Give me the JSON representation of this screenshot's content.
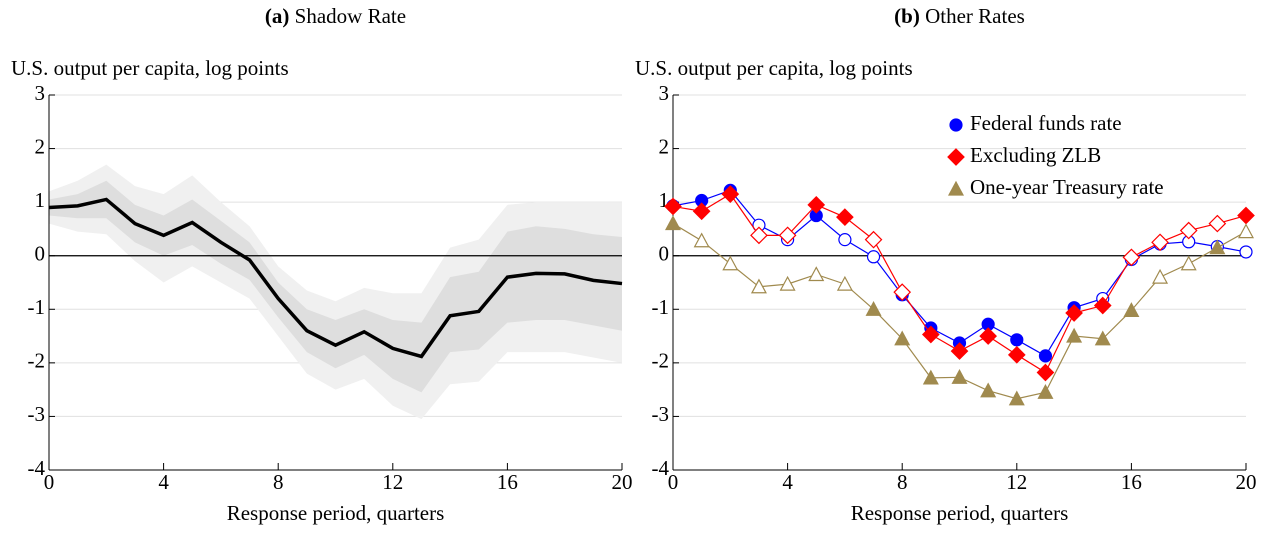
{
  "chart_data": [
    {
      "type": "band-line",
      "panel_label": "(a)",
      "title": "Shadow Rate",
      "y_label": "U.S. output per capita, log points",
      "x_label": "Response period, quarters",
      "x": [
        0,
        1,
        2,
        3,
        4,
        5,
        6,
        7,
        8,
        9,
        10,
        11,
        12,
        13,
        14,
        15,
        16,
        17,
        18,
        19,
        20
      ],
      "xlim": [
        0,
        20
      ],
      "xticks": [
        0,
        4,
        8,
        12,
        16,
        20
      ],
      "ylim": [
        -4,
        3
      ],
      "yticks": [
        3,
        2,
        1,
        0,
        -1,
        -2,
        -3,
        -4
      ],
      "hline": 0,
      "grid": true,
      "bands": [
        {
          "color": "#f0f0f0",
          "upper": [
            1.2,
            1.4,
            1.7,
            1.3,
            1.15,
            1.5,
            1.0,
            0.55,
            -0.2,
            -0.65,
            -0.85,
            -0.6,
            -0.7,
            -0.7,
            0.15,
            0.3,
            0.95,
            1.0,
            1.0,
            1.0,
            1.0
          ],
          "lower": [
            0.6,
            0.45,
            0.4,
            -0.1,
            -0.5,
            -0.2,
            -0.5,
            -0.8,
            -1.5,
            -2.2,
            -2.5,
            -2.3,
            -2.8,
            -3.05,
            -2.4,
            -2.35,
            -1.8,
            -1.8,
            -1.8,
            -1.9,
            -2.0
          ]
        },
        {
          "color": "#dedede",
          "upper": [
            1.05,
            1.15,
            1.4,
            0.95,
            0.75,
            1.05,
            0.65,
            0.25,
            -0.5,
            -1.0,
            -1.2,
            -1.0,
            -1.2,
            -1.25,
            -0.4,
            -0.3,
            0.45,
            0.55,
            0.5,
            0.4,
            0.35
          ],
          "lower": [
            0.75,
            0.7,
            0.7,
            0.25,
            0.0,
            0.2,
            -0.15,
            -0.45,
            -1.15,
            -1.8,
            -2.1,
            -1.85,
            -2.3,
            -2.55,
            -1.8,
            -1.75,
            -1.25,
            -1.2,
            -1.2,
            -1.3,
            -1.4
          ]
        }
      ],
      "series": [
        {
          "color": "#000000",
          "values": [
            0.9,
            0.93,
            1.05,
            0.6,
            0.38,
            0.62,
            0.25,
            -0.08,
            -0.8,
            -1.4,
            -1.67,
            -1.42,
            -1.73,
            -1.88,
            -1.12,
            -1.04,
            -0.4,
            -0.33,
            -0.34,
            -0.46,
            -0.52
          ]
        }
      ]
    },
    {
      "type": "marker-line",
      "panel_label": "(b)",
      "title": "Other Rates",
      "y_label": "U.S. output per capita, log points",
      "x_label": "Response period, quarters",
      "x": [
        0,
        1,
        2,
        3,
        4,
        5,
        6,
        7,
        8,
        9,
        10,
        11,
        12,
        13,
        14,
        15,
        16,
        17,
        18,
        19,
        20
      ],
      "xlim": [
        0,
        20
      ],
      "xticks": [
        0,
        4,
        8,
        12,
        16,
        20
      ],
      "ylim": [
        -4,
        3
      ],
      "yticks": [
        3,
        2,
        1,
        0,
        -1,
        -2,
        -3,
        -4
      ],
      "hline": 0,
      "grid": true,
      "legend": "upper right",
      "series": [
        {
          "name": "Federal funds rate",
          "color": "#0000ff",
          "marker": "circle",
          "values": [
            0.93,
            1.03,
            1.22,
            0.57,
            0.3,
            0.75,
            0.3,
            -0.02,
            -0.73,
            -1.35,
            -1.63,
            -1.28,
            -1.57,
            -1.87,
            -0.97,
            -0.8,
            -0.07,
            0.22,
            0.26,
            0.17,
            0.07
          ],
          "filled": [
            true,
            true,
            true,
            false,
            false,
            true,
            false,
            false,
            true,
            true,
            true,
            true,
            true,
            true,
            true,
            false,
            false,
            false,
            false,
            false,
            false
          ]
        },
        {
          "name": "Excluding ZLB",
          "color": "#ff0000",
          "marker": "diamond",
          "values": [
            0.92,
            0.83,
            1.15,
            0.38,
            0.38,
            0.95,
            0.72,
            0.3,
            -0.68,
            -1.47,
            -1.78,
            -1.5,
            -1.85,
            -2.18,
            -1.07,
            -0.93,
            -0.03,
            0.25,
            0.47,
            0.6,
            0.75
          ],
          "filled": [
            true,
            true,
            true,
            false,
            false,
            true,
            true,
            false,
            false,
            true,
            true,
            true,
            true,
            true,
            true,
            true,
            false,
            false,
            false,
            false,
            true
          ]
        },
        {
          "name": "One-year Treasury rate",
          "color": "#a08a4e",
          "marker": "triangle",
          "values": [
            0.6,
            0.28,
            -0.15,
            -0.58,
            -0.53,
            -0.35,
            -0.53,
            -1.0,
            -1.55,
            -2.28,
            -2.27,
            -2.52,
            -2.67,
            -2.55,
            -1.5,
            -1.55,
            -1.02,
            -0.4,
            -0.15,
            0.15,
            0.45
          ],
          "filled": [
            true,
            false,
            false,
            false,
            false,
            false,
            false,
            true,
            true,
            true,
            true,
            true,
            true,
            true,
            true,
            true,
            true,
            false,
            false,
            true,
            false
          ]
        }
      ]
    }
  ]
}
